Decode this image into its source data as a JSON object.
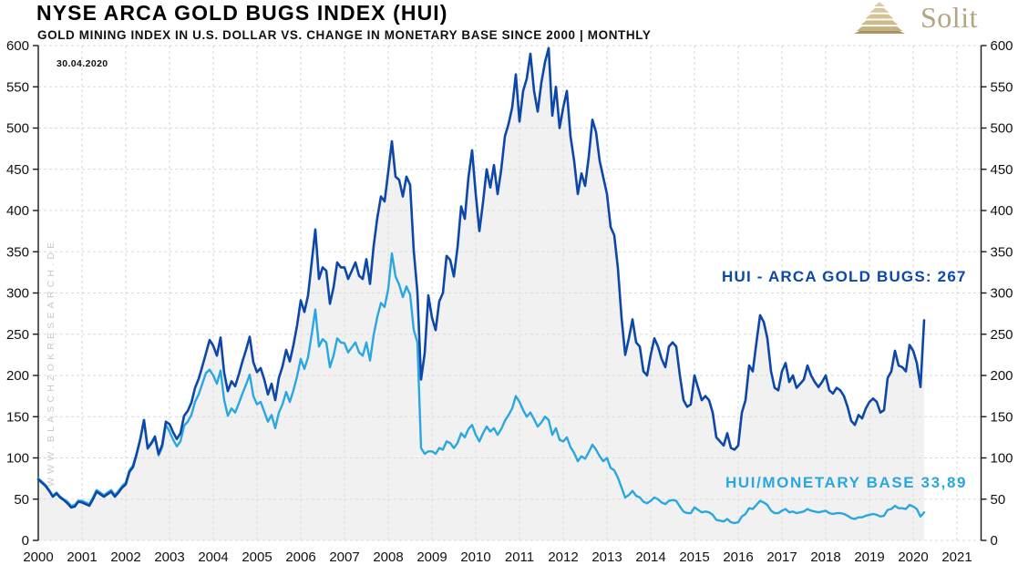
{
  "header": {
    "title": "NYSE ARCA GOLD BUGS INDEX (HUI)",
    "subtitle": "GOLD MINING INDEX IN U.S. DOLLAR VS. CHANGE IN MONETARY BASE SINCE 2000 | MONTHLY",
    "date_note": "30.04.2020"
  },
  "logo": {
    "text": "Solit",
    "icon": "gold-pyramid-icon",
    "color": "#b3a580"
  },
  "watermark": "WWW.BLASCHZOKRESEARCH.DE",
  "colors": {
    "hui_line": "#0d47a8",
    "ratio_line": "#2aa7e0",
    "area_fill": "#f1f1f1",
    "grid": "#dadada",
    "axis": "#1a1a1a",
    "tick_text": "#111111"
  },
  "chart_data": {
    "type": "line",
    "title": "NYSE ARCA GOLD BUGS INDEX (HUI)",
    "subtitle": "GOLD MINING INDEX IN U.S. DOLLAR VS. CHANGE IN MONETARY BASE SINCE 2000 | MONTHLY",
    "frequency": "monthly",
    "start_year": 2000,
    "last_point_date": "30.04.2020",
    "ylim": [
      0,
      600
    ],
    "grid": true,
    "x_ticks": [
      2000,
      2001,
      2002,
      2003,
      2004,
      2005,
      2006,
      2007,
      2008,
      2009,
      2010,
      2011,
      2012,
      2013,
      2014,
      2015,
      2016,
      2017,
      2018,
      2019,
      2020,
      2021
    ],
    "y_ticks": [
      0,
      50,
      100,
      150,
      200,
      250,
      300,
      350,
      400,
      450,
      500,
      550,
      600
    ],
    "y_axis_sides": [
      "left",
      "right"
    ],
    "series": [
      {
        "name": "HUI - ARCA GOLD BUGS",
        "label": "HUI - ARCA GOLD BUGS: 267",
        "current_value": 267,
        "color": "#0d47a8",
        "area_fill": "#f1f1f1",
        "values": [
          74,
          70,
          66,
          60,
          53,
          57,
          52,
          49,
          45,
          40,
          41,
          47,
          46,
          44,
          42,
          50,
          59,
          56,
          53,
          56,
          59,
          53,
          58,
          64,
          68,
          83,
          89,
          105,
          123,
          146,
          112,
          118,
          126,
          105,
          116,
          144,
          141,
          131,
          123,
          130,
          151,
          157,
          167,
          185,
          196,
          211,
          227,
          243,
          236,
          224,
          246,
          203,
          181,
          193,
          187,
          201,
          217,
          231,
          247,
          216,
          204,
          209,
          195,
          177,
          190,
          170,
          197,
          211,
          231,
          217,
          237,
          261,
          291,
          277,
          297,
          337,
          377,
          317,
          331,
          327,
          287,
          307,
          337,
          331,
          331,
          317,
          327,
          337,
          321,
          317,
          341,
          311,
          357,
          391,
          417,
          411,
          447,
          484,
          441,
          437,
          417,
          441,
          431,
          351,
          301,
          195,
          227,
          297,
          270,
          255,
          290,
          300,
          345,
          340,
          320,
          355,
          405,
          390,
          440,
          473,
          420,
          375,
          410,
          450,
          428,
          455,
          420,
          450,
          490,
          505,
          525,
          565,
          508,
          545,
          560,
          590,
          545,
          520,
          555,
          580,
          597,
          515,
          550,
          500,
          525,
          545,
          490,
          460,
          420,
          445,
          430,
          465,
          510,
          495,
          460,
          440,
          420,
          380,
          370,
          330,
          270,
          225,
          245,
          268,
          240,
          235,
          205,
          200,
          225,
          245,
          235,
          220,
          210,
          235,
          240,
          235,
          200,
          170,
          162,
          165,
          200,
          185,
          170,
          175,
          170,
          155,
          125,
          120,
          115,
          130,
          112,
          110,
          115,
          155,
          170,
          212,
          205,
          240,
          273,
          265,
          245,
          205,
          185,
          182,
          205,
          215,
          192,
          200,
          185,
          190,
          195,
          212,
          200,
          192,
          186,
          192,
          200,
          182,
          178,
          185,
          182,
          175,
          162,
          145,
          140,
          152,
          148,
          160,
          168,
          172,
          168,
          155,
          158,
          197,
          205,
          230,
          212,
          210,
          205,
          237,
          230,
          215,
          186,
          267
        ]
      },
      {
        "name": "HUI/MONETARY BASE",
        "label": "HUI/MONETARY BASE 33,89",
        "current_value": 33.89,
        "color": "#2aa7e0",
        "values": [
          75,
          71,
          67,
          61,
          54,
          58,
          53,
          50,
          47,
          42,
          43,
          48,
          48,
          46,
          44,
          52,
          61,
          58,
          55,
          58,
          61,
          55,
          60,
          66,
          70,
          85,
          91,
          106,
          124,
          146,
          111,
          117,
          124,
          103,
          113,
          140,
          132,
          122,
          114,
          120,
          139,
          144,
          152,
          168,
          177,
          190,
          203,
          207,
          200,
          190,
          206,
          170,
          151,
          160,
          155,
          166,
          178,
          189,
          201,
          175,
          165,
          168,
          156,
          144,
          152,
          136,
          155,
          165,
          180,
          168,
          182,
          199,
          220,
          208,
          222,
          250,
          280,
          235,
          244,
          240,
          210,
          224,
          245,
          240,
          239,
          228,
          234,
          240,
          228,
          224,
          240,
          218,
          249,
          271,
          288,
          283,
          305,
          348,
          320,
          310,
          295,
          308,
          298,
          255,
          240,
          112,
          105,
          108,
          108,
          105,
          112,
          110,
          120,
          118,
          112,
          118,
          130,
          125,
          135,
          140,
          128,
          120,
          130,
          138,
          132,
          136,
          128,
          135,
          145,
          152,
          160,
          175,
          168,
          158,
          150,
          155,
          147,
          138,
          143,
          150,
          146,
          128,
          136,
          122,
          120,
          125,
          113,
          106,
          96,
          102,
          99,
          107,
          116,
          110,
          102,
          96,
          100,
          88,
          85,
          76,
          64,
          52,
          55,
          60,
          54,
          52,
          47,
          45,
          48,
          52,
          50,
          46,
          44,
          48,
          49,
          48,
          41,
          35,
          33,
          33,
          40,
          37,
          34,
          35,
          34,
          31,
          25,
          24,
          23,
          26,
          22,
          21,
          22,
          29,
          32,
          39,
          38,
          43,
          48,
          46,
          43,
          36,
          33,
          33,
          36,
          38,
          34,
          35,
          33,
          34,
          35,
          38,
          36,
          35,
          34,
          35,
          36,
          33,
          32,
          33,
          33,
          32,
          30,
          27,
          26,
          28,
          28,
          30,
          31,
          32,
          31,
          29,
          30,
          37,
          38,
          42,
          39,
          39,
          38,
          43,
          41,
          38,
          29,
          33.89
        ]
      }
    ]
  }
}
